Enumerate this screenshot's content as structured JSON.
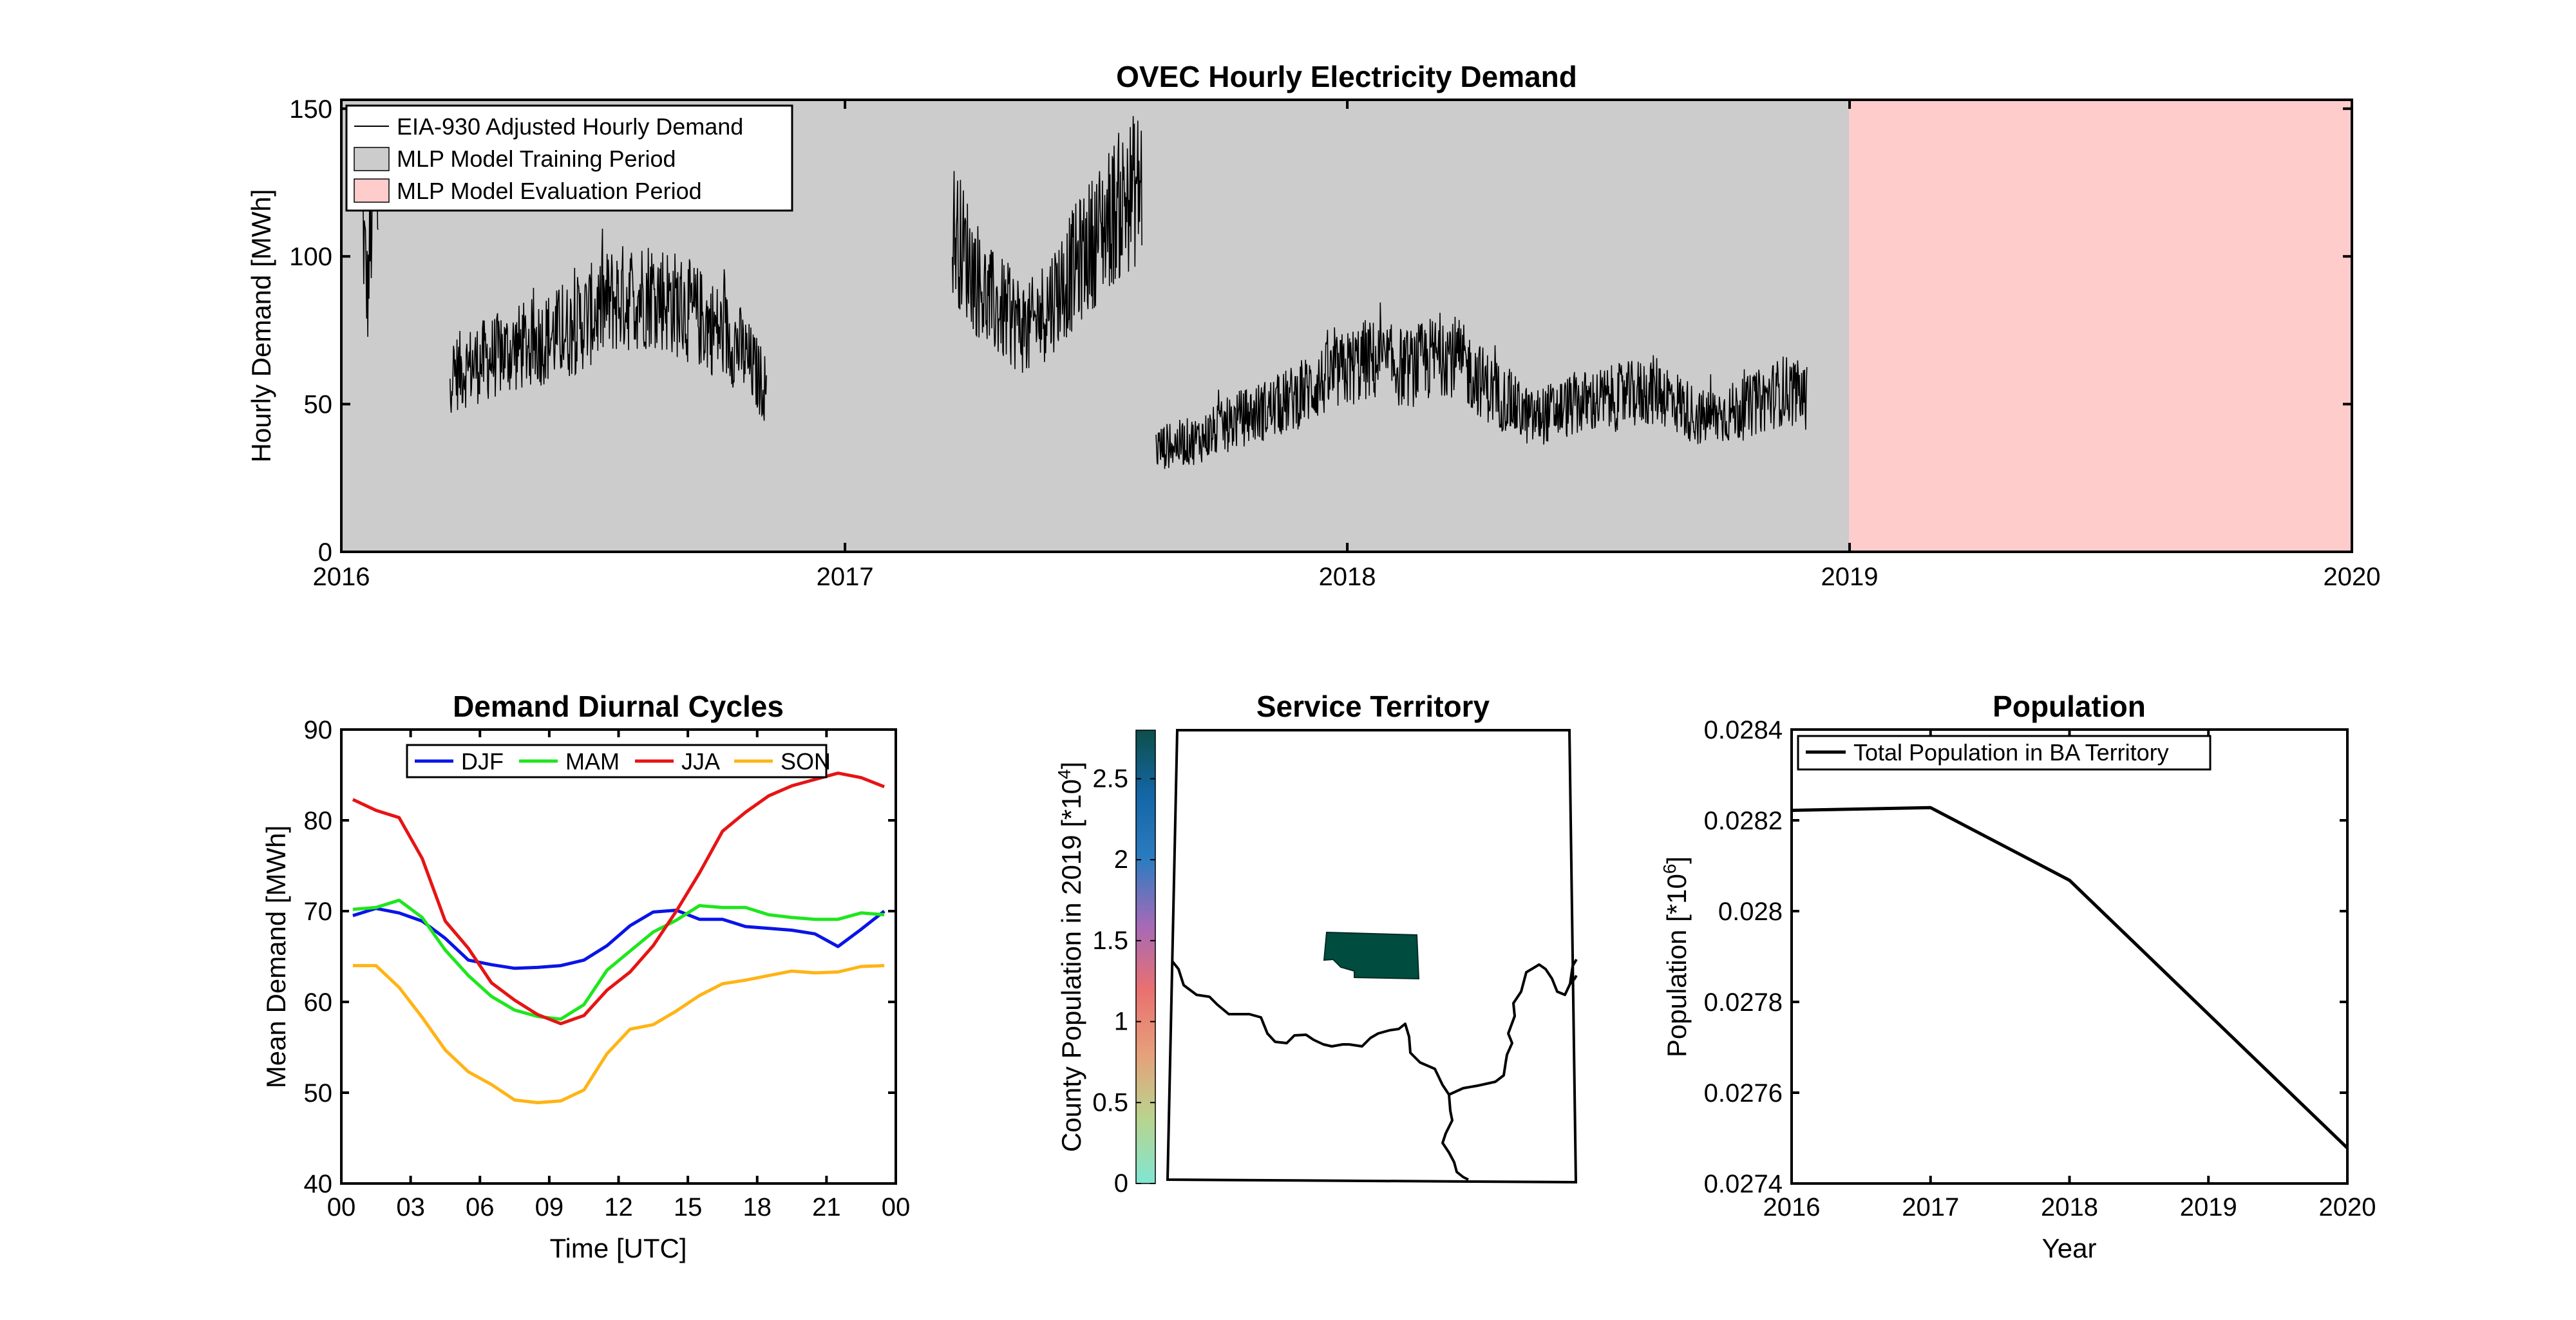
{
  "colors": {
    "training": "#cccccc",
    "evaluation": "#ffcccc",
    "demand": "#000000",
    "DJF": "#0a14e6",
    "MAM": "#1ee61e",
    "JJA": "#e61414",
    "SON": "#ffb414",
    "territory": "#004d40"
  },
  "chart_data": [
    {
      "type": "line",
      "title": "OVEC Hourly Electricity Demand",
      "xlabel": "",
      "ylabel": "Hourly Demand [MWh]",
      "xticks": [
        "2016",
        "2017",
        "2018",
        "2019",
        "2020"
      ],
      "xlim": [
        "2016-01-01",
        "2020-01-01"
      ],
      "yticks": [
        "0",
        "50",
        "100",
        "150"
      ],
      "ylim": [
        0,
        153
      ],
      "legend": {
        "position": "top-left",
        "entries": [
          "EIA-930 Adjusted Hourly Demand",
          "MLP Model Training Period",
          "MLP Model Evaluation Period"
        ]
      },
      "shaded_periods": [
        {
          "name": "MLP Model Training Period",
          "start": "2016-01-01",
          "end": "2019-01-01"
        },
        {
          "name": "MLP Model Evaluation Period",
          "start": "2019-01-01",
          "end": "2020-01-01"
        }
      ],
      "series": [
        {
          "name": "EIA-930 Adjusted Hourly Demand",
          "segments": [
            {
              "x": [
                "2016-01-16",
                "2016-01-20",
                "2016-01-25",
                "2016-01-28"
              ],
              "y": [
                115,
                86,
                128,
                112
              ]
            },
            {
              "x": [
                "2016-03-20",
                "2016-04-15",
                "2016-05-15",
                "2016-06-15",
                "2016-07-15",
                "2016-08-15",
                "2016-09-15",
                "2016-10-15",
                "2016-11-05"
              ],
              "y": [
                60,
                65,
                70,
                75,
                85,
                88,
                80,
                70,
                55
              ]
            },
            {
              "x": [
                "2017-03-20",
                "2017-04-15",
                "2017-05-15",
                "2017-06-15",
                "2017-07-15",
                "2017-08-05"
              ],
              "y": [
                110,
                85,
                75,
                95,
                115,
                125
              ]
            },
            {
              "x": [
                "2017-08-15",
                "2017-09-15",
                "2017-10-15",
                "2017-11-15",
                "2017-12-15",
                "2018-01-15",
                "2018-02-15",
                "2018-03-15",
                "2018-04-15",
                "2018-05-15",
                "2018-06-15",
                "2018-07-15",
                "2018-08-15",
                "2018-09-15",
                "2018-10-15",
                "2018-11-15",
                "2018-12-01"
              ],
              "y": [
                35,
                38,
                45,
                50,
                58,
                65,
                62,
                68,
                55,
                45,
                50,
                52,
                55,
                45,
                48,
                55,
                52
              ]
            }
          ]
        }
      ]
    },
    {
      "type": "line",
      "title": "Demand Diurnal Cycles",
      "xlabel": "Time [UTC]",
      "ylabel": "Mean Demand [MWh]",
      "xticks": [
        "00",
        "03",
        "06",
        "09",
        "12",
        "15",
        "18",
        "21",
        "00"
      ],
      "xlim": [
        0,
        24
      ],
      "yticks": [
        "40",
        "50",
        "60",
        "70",
        "80",
        "90"
      ],
      "ylim": [
        40,
        90
      ],
      "legend": {
        "position": "top",
        "entries": [
          "DJF",
          "MAM",
          "JJA",
          "SON"
        ]
      },
      "x": [
        0.5,
        1.5,
        2.5,
        3.5,
        4.5,
        5.5,
        6.5,
        7.5,
        8.5,
        9.5,
        10.5,
        11.5,
        12.5,
        13.5,
        14.5,
        15.5,
        16.5,
        17.5,
        18.5,
        19.5,
        20.5,
        21.5,
        22.5,
        23.5
      ],
      "series": [
        {
          "name": "DJF",
          "values": [
            69.5,
            70.3,
            69.8,
            68.9,
            67.0,
            64.6,
            64.1,
            63.7,
            63.8,
            64.0,
            64.6,
            66.2,
            68.4,
            69.9,
            70.1,
            69.1,
            69.1,
            68.3,
            68.1,
            67.9,
            67.5,
            66.1,
            68.0,
            70.0
          ]
        },
        {
          "name": "MAM",
          "values": [
            70.2,
            70.4,
            71.2,
            69.3,
            65.7,
            62.9,
            60.6,
            59.1,
            58.4,
            58.1,
            59.7,
            63.5,
            65.6,
            67.7,
            69.0,
            70.6,
            70.4,
            70.4,
            69.6,
            69.3,
            69.1,
            69.1,
            69.8,
            69.6
          ]
        },
        {
          "name": "JJA",
          "values": [
            82.3,
            81.1,
            80.3,
            75.8,
            68.9,
            65.9,
            62.1,
            60.2,
            58.6,
            57.6,
            58.5,
            61.3,
            63.3,
            66.2,
            70.0,
            74.2,
            78.8,
            80.9,
            82.7,
            83.8,
            84.5,
            85.2,
            84.7,
            83.7
          ]
        },
        {
          "name": "SON",
          "values": [
            64.0,
            64.0,
            61.6,
            58.3,
            54.7,
            52.3,
            50.9,
            49.2,
            48.9,
            49.1,
            50.3,
            54.3,
            57.0,
            57.5,
            59.0,
            60.7,
            62.0,
            62.4,
            62.9,
            63.4,
            63.2,
            63.3,
            63.9,
            64.0
          ]
        }
      ]
    },
    {
      "type": "heatmap",
      "title": "Service Territory",
      "colorbar_label": "County Population in 2019 [*10",
      "colorbar_label_exponent": "4",
      "colorbar_label_close": "]",
      "colorbar_range": [
        0,
        2.8
      ],
      "colorbar_ticks": [
        "0",
        "0.5",
        "1",
        "1.5",
        "2",
        "2.5"
      ],
      "colormap": [
        "#7fe6d2",
        "#b9d48e",
        "#e6a07a",
        "#e87070",
        "#a46ab8",
        "#2c7cc0",
        "#1466a6",
        "#0d4f4a"
      ],
      "highlighted_county_color": "#004d40"
    },
    {
      "type": "line",
      "title": "Population",
      "xlabel": "Year",
      "ylabel": "Population [*10",
      "ylabel_exponent": "6",
      "ylabel_close": "]",
      "xticks": [
        "2016",
        "2017",
        "2018",
        "2019",
        "2020"
      ],
      "xlim": [
        2016,
        2020
      ],
      "yticks": [
        "0.0274",
        "0.0276",
        "0.0278",
        "0.028",
        "0.0282",
        "0.0284"
      ],
      "ylim": [
        0.0274,
        0.0284
      ],
      "legend": {
        "position": "top-left",
        "entries": [
          "Total Population in BA Territory"
        ]
      },
      "series": [
        {
          "name": "Total Population in BA Territory",
          "x": [
            2016,
            2017,
            2018,
            2020
          ],
          "values": [
            0.028222,
            0.028228,
            0.028068,
            0.027478
          ]
        }
      ]
    }
  ]
}
